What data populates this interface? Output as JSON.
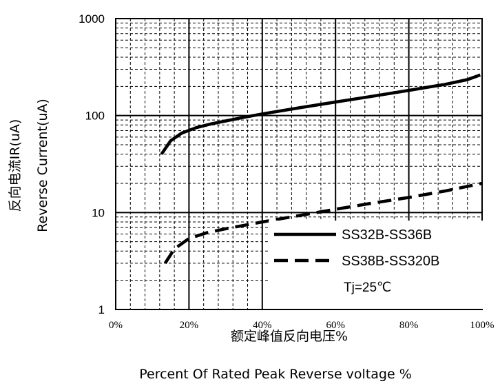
{
  "chart_data": {
    "type": "line",
    "title": "",
    "xlabel": "额定峰值反向电压%",
    "xlabel_en": "Percent Of Rated Peak Reverse voltage %",
    "ylabel": "反向电流IR(uA)",
    "ylabel_en": "Reverse Current(uA)",
    "y_scale": "log",
    "xlim": [
      0,
      100
    ],
    "ylim": [
      1,
      1000
    ],
    "x_ticks": [
      "0%",
      "20%",
      "40%",
      "60%",
      "80%",
      "100%"
    ],
    "y_ticks": [
      "1",
      "10",
      "100",
      "1000"
    ],
    "grid": true,
    "legend_position": "bottom-right",
    "annotation": "Tj=25℃",
    "series": [
      {
        "name": "SS32B-SS36B",
        "line_style": "solid",
        "x": [
          12.5,
          15,
          18,
          22,
          26,
          30,
          35,
          40,
          50,
          60,
          70,
          80,
          90,
          96,
          99.5
        ],
        "y": [
          40,
          55,
          66,
          75,
          82,
          88,
          96,
          104,
          120,
          138,
          158,
          182,
          210,
          235,
          262
        ]
      },
      {
        "name": "SS38B-SS320B",
        "line_style": "dashed",
        "x": [
          13.5,
          16,
          20,
          25,
          30,
          40,
          50,
          60,
          70,
          80,
          90,
          100
        ],
        "y": [
          3.0,
          4.2,
          5.4,
          6.2,
          6.8,
          8.0,
          9.3,
          10.8,
          12.5,
          14.3,
          16.7,
          20
        ]
      }
    ]
  }
}
